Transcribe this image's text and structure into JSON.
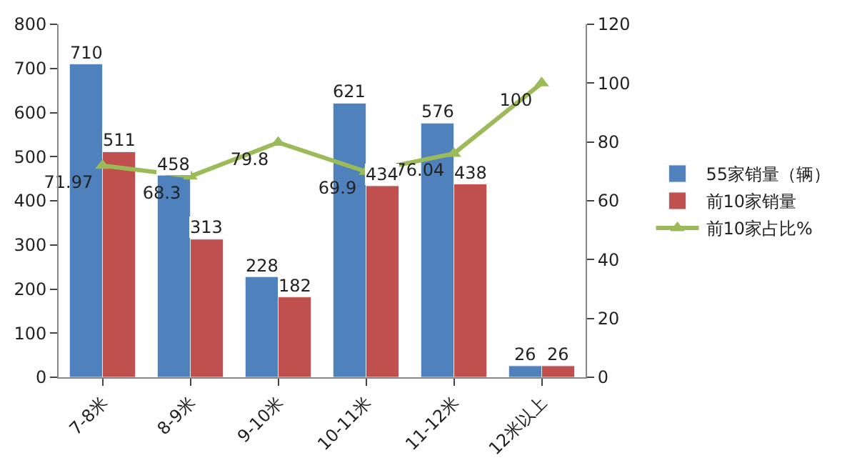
{
  "chart_data": {
    "type": "bar",
    "categories": [
      "7-8米",
      "8-9米",
      "9-10米",
      "10-11米",
      "11-12米",
      "12米以上"
    ],
    "series": [
      {
        "name": "55家销量（辆）",
        "color": "#4f81bd",
        "values": [
          710,
          458,
          228,
          621,
          576,
          26
        ]
      },
      {
        "name": "前10家销量",
        "color": "#c0504d",
        "values": [
          511,
          313,
          182,
          434,
          438,
          26
        ]
      },
      {
        "name": "前10家占比%",
        "color": "#9bbb59",
        "type": "line",
        "axis": "y2",
        "marker": "triangle",
        "values": [
          71.97,
          68.3,
          79.8,
          69.9,
          76.04,
          100
        ]
      }
    ],
    "ylim": [
      0,
      800
    ],
    "yticks": [
      0,
      100,
      200,
      300,
      400,
      500,
      600,
      700,
      800
    ],
    "y2lim": [
      0,
      120
    ],
    "y2ticks": [
      0,
      20,
      40,
      60,
      80,
      100,
      120
    ],
    "data_labels": true,
    "legend": "right"
  }
}
